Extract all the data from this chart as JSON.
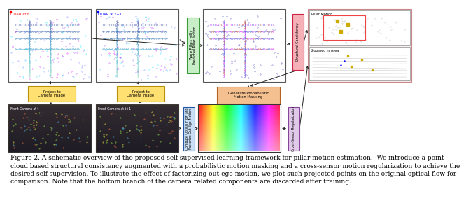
{
  "caption": "Figure 2. A schematic overview of the proposed self-supervised learning framework for pillar motion estimation.  We introduce a point\ncloud based structural consistency augmented with a probabilistic motion masking and a cross-sensor motion regularization to achieve the\ndesired self-supervision. To illustrate the effect of factorizing out ego-motion, we plot such projected points on the original optical flow for\ncomparison. Note that the bottom branch of the camera related components are discarded after training.",
  "bg_color": "#ffffff",
  "label_lidar1": "LiDAR at t",
  "label_lidar2": "LiDAR at t+1",
  "label_warp": "Warp Pillars with\nPredicted Pillar Motion",
  "label_proj1": "Project to\nCamera Image",
  "label_proj2": "Project to\nCamera Image",
  "label_gen_mask": "Generate Probabilistic\nMotion Masking",
  "label_struct": "Structural Consistency",
  "label_cross": "Cross-Sensor Regularization",
  "label_compute": "Compute Optical Flow and\nFactorize Out Ego-Motion",
  "label_pillar_motion": "Pillar Motion",
  "label_zoomed": "Zoomed in Area",
  "label_cam1": "Front Camera at t",
  "label_cam2": "Front Camera at t+1",
  "warp_fc": "#c8eec8",
  "warp_ec": "#3a9a3a",
  "proj_fc": "#ffe070",
  "proj_ec": "#b8900a",
  "gen_fc": "#f5c090",
  "gen_ec": "#b86020",
  "struct_fc": "#f5b0b8",
  "struct_ec": "#cc2244",
  "cross_fc": "#e0c8e8",
  "cross_ec": "#884499",
  "compute_fc": "#c8dff5",
  "compute_ec": "#2255aa",
  "result_panel_ec": "#cc8888",
  "font_size_caption": 6.5
}
